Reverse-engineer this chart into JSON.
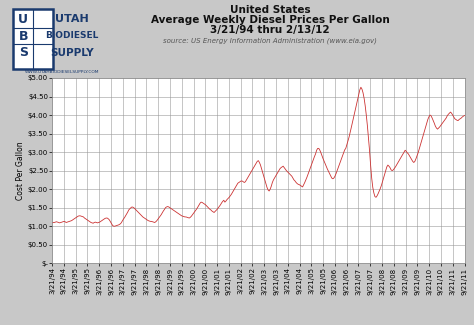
{
  "title_line1": "United States",
  "title_line2": "Average Weekly Diesel Prices Per Gallon",
  "title_line3": "3/21/94 thru 2/13/12",
  "source_text": "source: US Energy Information Administration (www.eia.gov)",
  "ylabel": "Cost Per Gallon",
  "line_color": "#cc3333",
  "background_color": "#c8c8c8",
  "plot_bg_color": "#ffffff",
  "header_bg": "#ffffff",
  "ylim": [
    0,
    5.0
  ],
  "yticks": [
    0,
    0.5,
    1.0,
    1.5,
    2.0,
    2.5,
    3.0,
    3.5,
    4.0,
    4.5,
    5.0
  ],
  "ytick_labels": [
    "$-",
    "$0.50",
    "$1.00",
    "$1.50",
    "$2.00",
    "$2.50",
    "$3.00",
    "$3.50",
    "$4.00",
    "$4.50",
    "$5.00"
  ],
  "xtick_labels": [
    "3/21/94",
    "9/21/94",
    "3/21/95",
    "9/21/95",
    "3/21/96",
    "9/21/96",
    "3/21/97",
    "9/21/97",
    "3/21/98",
    "9/21/98",
    "3/21/99",
    "9/21/99",
    "3/21/00",
    "9/21/00",
    "3/21/01",
    "9/21/01",
    "3/21/02",
    "9/21/02",
    "3/21/03",
    "9/21/03",
    "3/21/04",
    "9/21/04",
    "3/21/05",
    "9/21/05",
    "3/21/06",
    "9/21/06",
    "3/21/07",
    "9/21/07",
    "3/21/08",
    "9/21/08",
    "3/21/09",
    "9/21/09",
    "3/21/10",
    "9/21/10",
    "3/21/11",
    "9/21/11"
  ],
  "prices": [
    1.09,
    1.1,
    1.1,
    1.11,
    1.12,
    1.11,
    1.1,
    1.09,
    1.1,
    1.11,
    1.12,
    1.13,
    1.12,
    1.1,
    1.11,
    1.12,
    1.13,
    1.14,
    1.15,
    1.17,
    1.19,
    1.21,
    1.23,
    1.25,
    1.27,
    1.28,
    1.28,
    1.27,
    1.26,
    1.25,
    1.22,
    1.2,
    1.18,
    1.16,
    1.14,
    1.12,
    1.1,
    1.09,
    1.08,
    1.1,
    1.11,
    1.1,
    1.09,
    1.1,
    1.11,
    1.13,
    1.15,
    1.17,
    1.19,
    1.21,
    1.22,
    1.22,
    1.2,
    1.17,
    1.12,
    1.07,
    1.02,
    1.0,
    1.0,
    1.01,
    1.02,
    1.03,
    1.04,
    1.06,
    1.09,
    1.14,
    1.19,
    1.23,
    1.28,
    1.33,
    1.38,
    1.44,
    1.47,
    1.5,
    1.52,
    1.51,
    1.49,
    1.46,
    1.43,
    1.4,
    1.37,
    1.34,
    1.31,
    1.28,
    1.25,
    1.23,
    1.21,
    1.19,
    1.17,
    1.15,
    1.14,
    1.13,
    1.13,
    1.12,
    1.11,
    1.1,
    1.12,
    1.15,
    1.19,
    1.23,
    1.27,
    1.31,
    1.36,
    1.41,
    1.45,
    1.5,
    1.52,
    1.53,
    1.52,
    1.5,
    1.48,
    1.46,
    1.44,
    1.42,
    1.4,
    1.38,
    1.36,
    1.34,
    1.32,
    1.3,
    1.28,
    1.27,
    1.26,
    1.25,
    1.25,
    1.24,
    1.23,
    1.22,
    1.24,
    1.27,
    1.31,
    1.35,
    1.39,
    1.43,
    1.47,
    1.52,
    1.57,
    1.62,
    1.65,
    1.64,
    1.62,
    1.6,
    1.58,
    1.55,
    1.52,
    1.49,
    1.46,
    1.44,
    1.41,
    1.39,
    1.37,
    1.4,
    1.43,
    1.46,
    1.5,
    1.54,
    1.58,
    1.63,
    1.67,
    1.7,
    1.65,
    1.68,
    1.72,
    1.75,
    1.78,
    1.82,
    1.86,
    1.91,
    1.96,
    2.01,
    2.06,
    2.11,
    2.16,
    2.18,
    2.2,
    2.22,
    2.22,
    2.2,
    2.18,
    2.2,
    2.25,
    2.3,
    2.35,
    2.4,
    2.45,
    2.5,
    2.55,
    2.6,
    2.65,
    2.7,
    2.75,
    2.77,
    2.72,
    2.65,
    2.55,
    2.45,
    2.35,
    2.25,
    2.15,
    2.05,
    1.98,
    1.95,
    2.0,
    2.08,
    2.18,
    2.25,
    2.3,
    2.35,
    2.4,
    2.45,
    2.5,
    2.55,
    2.58,
    2.6,
    2.62,
    2.58,
    2.54,
    2.5,
    2.47,
    2.44,
    2.41,
    2.38,
    2.35,
    2.3,
    2.25,
    2.22,
    2.18,
    2.15,
    2.13,
    2.12,
    2.1,
    2.08,
    2.06,
    2.12,
    2.18,
    2.25,
    2.32,
    2.4,
    2.48,
    2.56,
    2.64,
    2.72,
    2.8,
    2.88,
    2.95,
    3.05,
    3.1,
    3.1,
    3.05,
    2.98,
    2.9,
    2.82,
    2.75,
    2.68,
    2.61,
    2.54,
    2.48,
    2.42,
    2.36,
    2.3,
    2.28,
    2.3,
    2.35,
    2.42,
    2.5,
    2.58,
    2.66,
    2.74,
    2.82,
    2.9,
    2.98,
    3.06,
    3.1,
    3.2,
    3.3,
    3.4,
    3.52,
    3.65,
    3.78,
    3.92,
    4.05,
    4.18,
    4.3,
    4.42,
    4.55,
    4.68,
    4.75,
    4.7,
    4.6,
    4.45,
    4.25,
    4.0,
    3.72,
    3.4,
    3.05,
    2.65,
    2.3,
    2.05,
    1.9,
    1.8,
    1.78,
    1.82,
    1.88,
    1.95,
    2.02,
    2.1,
    2.2,
    2.3,
    2.4,
    2.5,
    2.6,
    2.65,
    2.62,
    2.58,
    2.52,
    2.5,
    2.52,
    2.56,
    2.6,
    2.65,
    2.7,
    2.75,
    2.8,
    2.85,
    2.9,
    2.95,
    3.0,
    3.05,
    3.02,
    2.98,
    2.95,
    2.9,
    2.85,
    2.8,
    2.75,
    2.72,
    2.75,
    2.82,
    2.9,
    2.98,
    3.08,
    3.18,
    3.28,
    3.38,
    3.48,
    3.58,
    3.68,
    3.78,
    3.88,
    3.95,
    4.0,
    3.98,
    3.92,
    3.85,
    3.78,
    3.7,
    3.65,
    3.62,
    3.65,
    3.68,
    3.72,
    3.76,
    3.8,
    3.84,
    3.88,
    3.92,
    3.98,
    4.02,
    4.05,
    4.08,
    4.05,
    4.0,
    3.95,
    3.9,
    3.88,
    3.86,
    3.85,
    3.88,
    3.9,
    3.92,
    3.95,
    3.97,
    3.99
  ]
}
